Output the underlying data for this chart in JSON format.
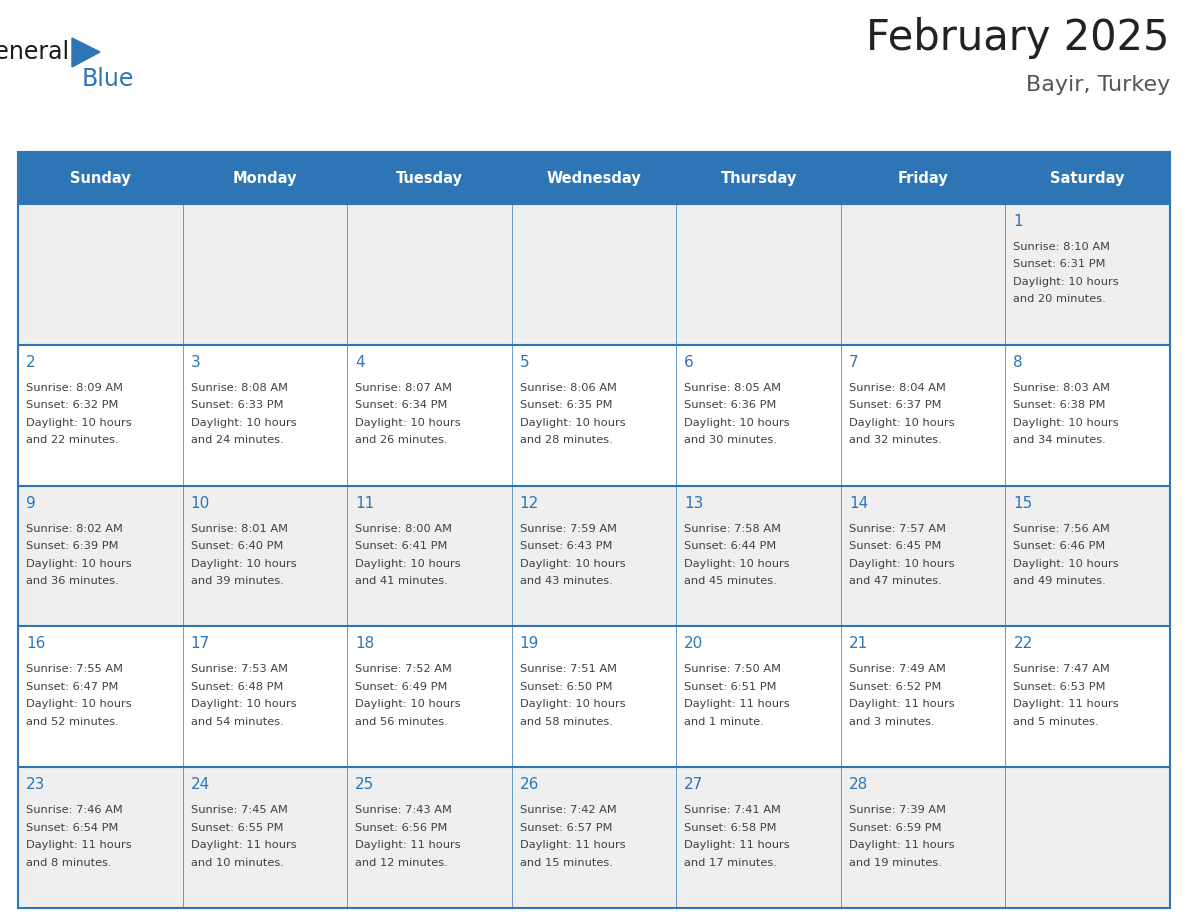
{
  "title": "February 2025",
  "subtitle": "Bayir, Turkey",
  "header_color": "#2E75B6",
  "header_text_color": "#FFFFFF",
  "odd_row_bg": "#EFEFEF",
  "even_row_bg": "#FFFFFF",
  "cell_border_color": "#2E75B6",
  "day_number_color": "#2E75B6",
  "detail_text_color": "#404040",
  "title_color": "#222222",
  "days_of_week": [
    "Sunday",
    "Monday",
    "Tuesday",
    "Wednesday",
    "Thursday",
    "Friday",
    "Saturday"
  ],
  "calendar_data": [
    [
      null,
      null,
      null,
      null,
      null,
      null,
      {
        "day": "1",
        "sunrise": "8:10 AM",
        "sunset": "6:31 PM",
        "daylight1": "Daylight: 10 hours",
        "daylight2": "and 20 minutes."
      }
    ],
    [
      {
        "day": "2",
        "sunrise": "8:09 AM",
        "sunset": "6:32 PM",
        "daylight1": "Daylight: 10 hours",
        "daylight2": "and 22 minutes."
      },
      {
        "day": "3",
        "sunrise": "8:08 AM",
        "sunset": "6:33 PM",
        "daylight1": "Daylight: 10 hours",
        "daylight2": "and 24 minutes."
      },
      {
        "day": "4",
        "sunrise": "8:07 AM",
        "sunset": "6:34 PM",
        "daylight1": "Daylight: 10 hours",
        "daylight2": "and 26 minutes."
      },
      {
        "day": "5",
        "sunrise": "8:06 AM",
        "sunset": "6:35 PM",
        "daylight1": "Daylight: 10 hours",
        "daylight2": "and 28 minutes."
      },
      {
        "day": "6",
        "sunrise": "8:05 AM",
        "sunset": "6:36 PM",
        "daylight1": "Daylight: 10 hours",
        "daylight2": "and 30 minutes."
      },
      {
        "day": "7",
        "sunrise": "8:04 AM",
        "sunset": "6:37 PM",
        "daylight1": "Daylight: 10 hours",
        "daylight2": "and 32 minutes."
      },
      {
        "day": "8",
        "sunrise": "8:03 AM",
        "sunset": "6:38 PM",
        "daylight1": "Daylight: 10 hours",
        "daylight2": "and 34 minutes."
      }
    ],
    [
      {
        "day": "9",
        "sunrise": "8:02 AM",
        "sunset": "6:39 PM",
        "daylight1": "Daylight: 10 hours",
        "daylight2": "and 36 minutes."
      },
      {
        "day": "10",
        "sunrise": "8:01 AM",
        "sunset": "6:40 PM",
        "daylight1": "Daylight: 10 hours",
        "daylight2": "and 39 minutes."
      },
      {
        "day": "11",
        "sunrise": "8:00 AM",
        "sunset": "6:41 PM",
        "daylight1": "Daylight: 10 hours",
        "daylight2": "and 41 minutes."
      },
      {
        "day": "12",
        "sunrise": "7:59 AM",
        "sunset": "6:43 PM",
        "daylight1": "Daylight: 10 hours",
        "daylight2": "and 43 minutes."
      },
      {
        "day": "13",
        "sunrise": "7:58 AM",
        "sunset": "6:44 PM",
        "daylight1": "Daylight: 10 hours",
        "daylight2": "and 45 minutes."
      },
      {
        "day": "14",
        "sunrise": "7:57 AM",
        "sunset": "6:45 PM",
        "daylight1": "Daylight: 10 hours",
        "daylight2": "and 47 minutes."
      },
      {
        "day": "15",
        "sunrise": "7:56 AM",
        "sunset": "6:46 PM",
        "daylight1": "Daylight: 10 hours",
        "daylight2": "and 49 minutes."
      }
    ],
    [
      {
        "day": "16",
        "sunrise": "7:55 AM",
        "sunset": "6:47 PM",
        "daylight1": "Daylight: 10 hours",
        "daylight2": "and 52 minutes."
      },
      {
        "day": "17",
        "sunrise": "7:53 AM",
        "sunset": "6:48 PM",
        "daylight1": "Daylight: 10 hours",
        "daylight2": "and 54 minutes."
      },
      {
        "day": "18",
        "sunrise": "7:52 AM",
        "sunset": "6:49 PM",
        "daylight1": "Daylight: 10 hours",
        "daylight2": "and 56 minutes."
      },
      {
        "day": "19",
        "sunrise": "7:51 AM",
        "sunset": "6:50 PM",
        "daylight1": "Daylight: 10 hours",
        "daylight2": "and 58 minutes."
      },
      {
        "day": "20",
        "sunrise": "7:50 AM",
        "sunset": "6:51 PM",
        "daylight1": "Daylight: 11 hours",
        "daylight2": "and 1 minute."
      },
      {
        "day": "21",
        "sunrise": "7:49 AM",
        "sunset": "6:52 PM",
        "daylight1": "Daylight: 11 hours",
        "daylight2": "and 3 minutes."
      },
      {
        "day": "22",
        "sunrise": "7:47 AM",
        "sunset": "6:53 PM",
        "daylight1": "Daylight: 11 hours",
        "daylight2": "and 5 minutes."
      }
    ],
    [
      {
        "day": "23",
        "sunrise": "7:46 AM",
        "sunset": "6:54 PM",
        "daylight1": "Daylight: 11 hours",
        "daylight2": "and 8 minutes."
      },
      {
        "day": "24",
        "sunrise": "7:45 AM",
        "sunset": "6:55 PM",
        "daylight1": "Daylight: 11 hours",
        "daylight2": "and 10 minutes."
      },
      {
        "day": "25",
        "sunrise": "7:43 AM",
        "sunset": "6:56 PM",
        "daylight1": "Daylight: 11 hours",
        "daylight2": "and 12 minutes."
      },
      {
        "day": "26",
        "sunrise": "7:42 AM",
        "sunset": "6:57 PM",
        "daylight1": "Daylight: 11 hours",
        "daylight2": "and 15 minutes."
      },
      {
        "day": "27",
        "sunrise": "7:41 AM",
        "sunset": "6:58 PM",
        "daylight1": "Daylight: 11 hours",
        "daylight2": "and 17 minutes."
      },
      {
        "day": "28",
        "sunrise": "7:39 AM",
        "sunset": "6:59 PM",
        "daylight1": "Daylight: 11 hours",
        "daylight2": "and 19 minutes."
      },
      null
    ]
  ],
  "background_color": "#FFFFFF"
}
